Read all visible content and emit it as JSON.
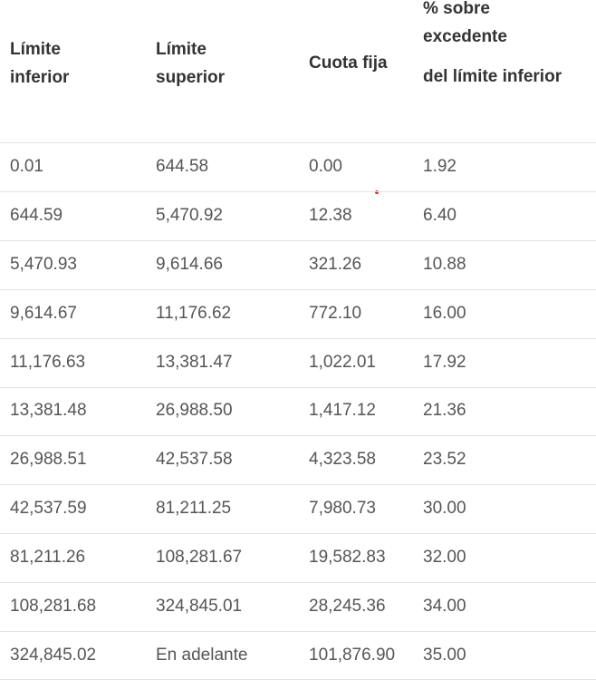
{
  "table": {
    "header": [
      "Límite inferior",
      "Límite superior",
      "Cuota fija",
      {
        "top": "% sobre excedente",
        "bottom": "del límite inferior"
      }
    ],
    "rows": [
      [
        "0.01",
        "644.58",
        "0.00",
        "1.92"
      ],
      [
        "644.59",
        "5,470.92",
        "12.38",
        "6.40"
      ],
      [
        "5,470.93",
        "9,614.66",
        "321.26",
        "10.88"
      ],
      [
        "9,614.67",
        "11,176.62",
        "772.10",
        "16.00"
      ],
      [
        "11,176.63",
        "13,381.47",
        "1,022.01",
        "17.92"
      ],
      [
        "13,381.48",
        "26,988.50",
        "1,417.12",
        "21.36"
      ],
      [
        "26,988.51",
        "42,537.58",
        "4,323.58",
        "23.52"
      ],
      [
        "42,537.59",
        "81,211.25",
        "7,980.73",
        "30.00"
      ],
      [
        "81,211.26",
        "108,281.67",
        "19,582.83",
        "32.00"
      ],
      [
        "108,281.68",
        "324,845.01",
        "28,245.36",
        "34.00"
      ],
      [
        "324,845.02",
        "En adelante",
        "101,876.90",
        "35.00"
      ]
    ]
  }
}
